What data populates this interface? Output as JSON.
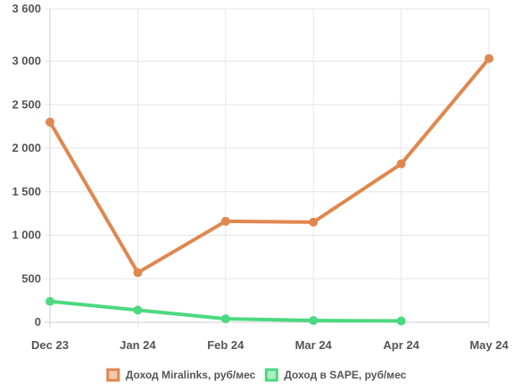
{
  "chart_data": {
    "type": "line",
    "title": "",
    "xlabel": "",
    "ylabel": "",
    "categories": [
      "Dec 23",
      "Jan 24",
      "Feb 24",
      "Mar 24",
      "Apr 24",
      "May 24"
    ],
    "ylim": [
      0,
      3600
    ],
    "yticks": [
      0,
      500,
      1000,
      1500,
      2000,
      2500,
      3000,
      3600
    ],
    "ytick_labels": [
      "0",
      "500",
      "1 000",
      "1 500",
      "2 000",
      "2 500",
      "3 000",
      "3 600"
    ],
    "grid": true,
    "legend_position": "bottom",
    "series": [
      {
        "name": "Доход Miralinks, руб/мес",
        "color": "#e0874f",
        "values": [
          2300,
          570,
          1160,
          1150,
          1820,
          3030
        ]
      },
      {
        "name": "Доход в SAPE, руб/мес",
        "color": "#4cd97f",
        "values": [
          240,
          140,
          40,
          20,
          15,
          null
        ]
      }
    ]
  }
}
